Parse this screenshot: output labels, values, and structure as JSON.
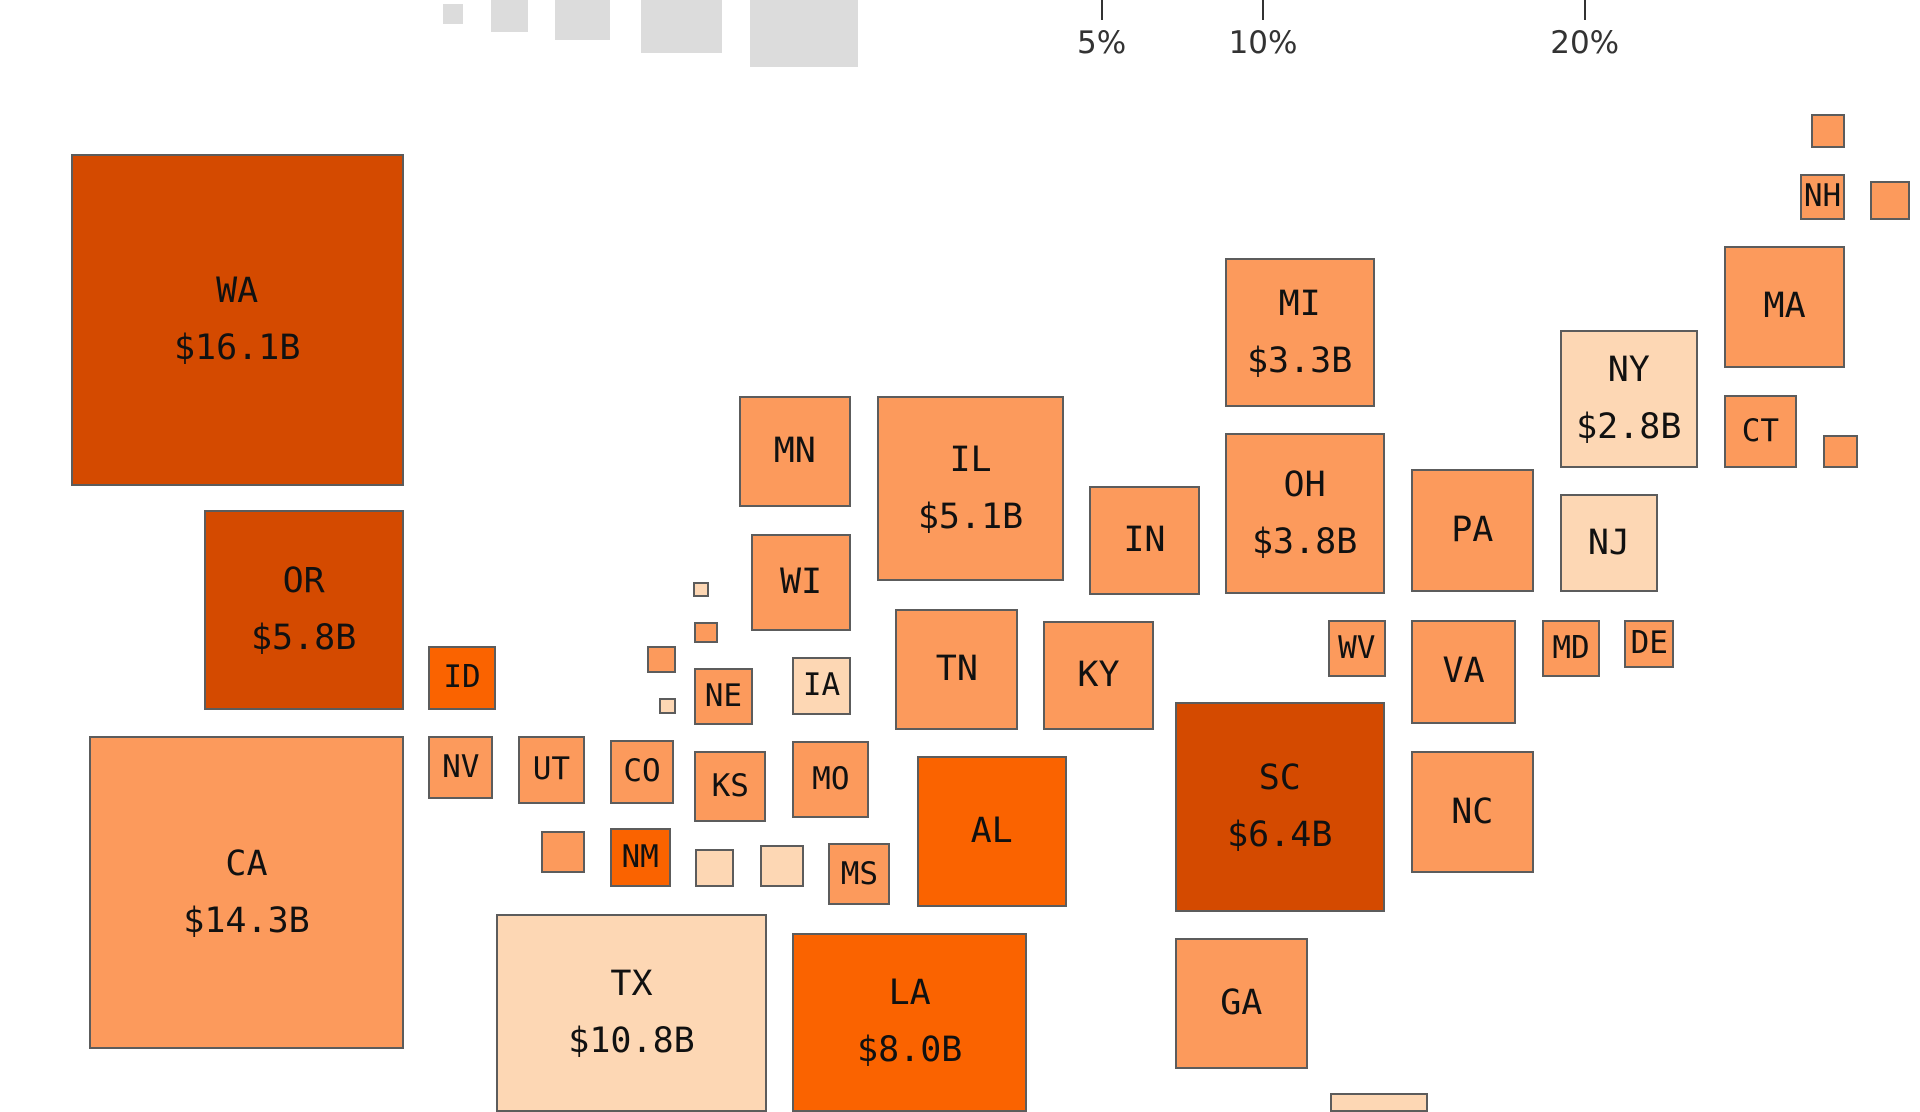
{
  "palette": {
    "darkest": "#d44a00",
    "dark": "#fa6300",
    "medium": "#fc9a5c",
    "light": "#fdd7b4",
    "legend_gray": "#dcdcdc",
    "border": "#5c5c5c"
  },
  "axis_ticks": [
    {
      "label": "5%",
      "value": 5
    },
    {
      "label": "10%",
      "value": 10
    },
    {
      "label": "20%",
      "value": 20
    }
  ],
  "states": [
    {
      "abbr": "WA",
      "value_label": "$16.1B",
      "shade": "darkest"
    },
    {
      "abbr": "OR",
      "value_label": "$5.8B",
      "shade": "darkest"
    },
    {
      "abbr": "CA",
      "value_label": "$14.3B",
      "shade": "medium"
    },
    {
      "abbr": "ID",
      "value_label": "",
      "shade": "dark"
    },
    {
      "abbr": "NV",
      "value_label": "",
      "shade": "medium"
    },
    {
      "abbr": "UT",
      "value_label": "",
      "shade": "medium"
    },
    {
      "abbr": "CO",
      "value_label": "",
      "shade": "medium"
    },
    {
      "abbr": "NM",
      "value_label": "",
      "shade": "dark"
    },
    {
      "abbr": "TX",
      "value_label": "$10.8B",
      "shade": "light"
    },
    {
      "abbr": "LA",
      "value_label": "$8.0B",
      "shade": "dark"
    },
    {
      "abbr": "MN",
      "value_label": "",
      "shade": "medium"
    },
    {
      "abbr": "WI",
      "value_label": "",
      "shade": "medium"
    },
    {
      "abbr": "NE",
      "value_label": "",
      "shade": "medium"
    },
    {
      "abbr": "IA",
      "value_label": "",
      "shade": "light"
    },
    {
      "abbr": "KS",
      "value_label": "",
      "shade": "medium"
    },
    {
      "abbr": "MO",
      "value_label": "",
      "shade": "medium"
    },
    {
      "abbr": "MS",
      "value_label": "",
      "shade": "medium"
    },
    {
      "abbr": "IL",
      "value_label": "$5.1B",
      "shade": "medium"
    },
    {
      "abbr": "TN",
      "value_label": "",
      "shade": "medium"
    },
    {
      "abbr": "AL",
      "value_label": "",
      "shade": "dark"
    },
    {
      "abbr": "IN",
      "value_label": "",
      "shade": "medium"
    },
    {
      "abbr": "KY",
      "value_label": "",
      "shade": "medium"
    },
    {
      "abbr": "MI",
      "value_label": "$3.3B",
      "shade": "medium"
    },
    {
      "abbr": "OH",
      "value_label": "$3.8B",
      "shade": "medium"
    },
    {
      "abbr": "SC",
      "value_label": "$6.4B",
      "shade": "darkest"
    },
    {
      "abbr": "GA",
      "value_label": "",
      "shade": "medium"
    },
    {
      "abbr": "WV",
      "value_label": "",
      "shade": "medium"
    },
    {
      "abbr": "PA",
      "value_label": "",
      "shade": "medium"
    },
    {
      "abbr": "VA",
      "value_label": "",
      "shade": "medium"
    },
    {
      "abbr": "NC",
      "value_label": "",
      "shade": "medium"
    },
    {
      "abbr": "MD",
      "value_label": "",
      "shade": "medium"
    },
    {
      "abbr": "DE",
      "value_label": "",
      "shade": "medium"
    },
    {
      "abbr": "NY",
      "value_label": "$2.8B",
      "shade": "light"
    },
    {
      "abbr": "NJ",
      "value_label": "",
      "shade": "light"
    },
    {
      "abbr": "MA",
      "value_label": "",
      "shade": "medium"
    },
    {
      "abbr": "CT",
      "value_label": "",
      "shade": "medium"
    },
    {
      "abbr": "NH",
      "value_label": "",
      "shade": "medium"
    },
    {
      "abbr": "",
      "value_label": "",
      "shade": "medium"
    },
    {
      "abbr": "",
      "value_label": "",
      "shade": "medium"
    },
    {
      "abbr": "",
      "value_label": "",
      "shade": "medium"
    },
    {
      "abbr": "",
      "value_label": "",
      "shade": "medium"
    },
    {
      "abbr": "",
      "value_label": "",
      "shade": "light"
    },
    {
      "abbr": "",
      "value_label": "",
      "shade": "light"
    },
    {
      "abbr": "",
      "value_label": "",
      "shade": "medium"
    },
    {
      "abbr": "",
      "value_label": "",
      "shade": "medium"
    },
    {
      "abbr": "",
      "value_label": "",
      "shade": "light"
    },
    {
      "abbr": "",
      "value_label": "",
      "shade": "light"
    },
    {
      "abbr": "",
      "value_label": "",
      "shade": "light"
    }
  ]
}
